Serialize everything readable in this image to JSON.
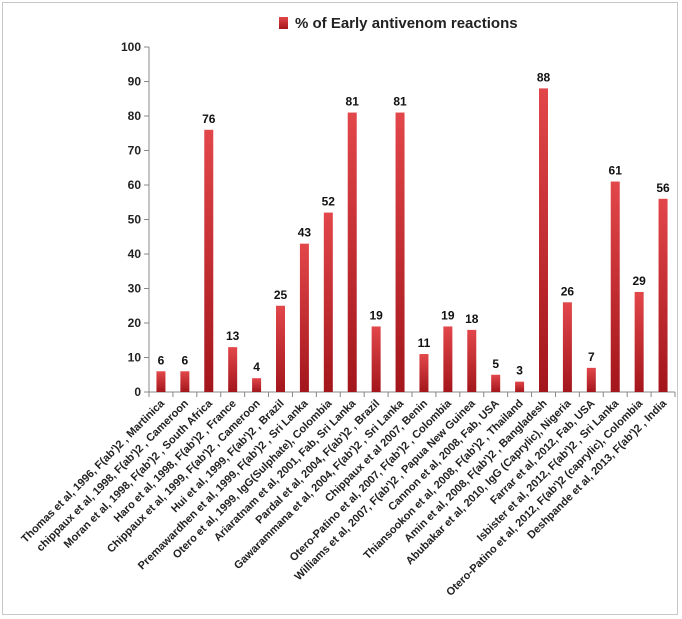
{
  "chart_data": {
    "type": "bar",
    "title": "",
    "xlabel": "",
    "ylabel": "",
    "ylim": [
      0,
      100
    ],
    "yticks": [
      0,
      10,
      20,
      30,
      40,
      50,
      60,
      70,
      80,
      90,
      100
    ],
    "grid": false,
    "legend_position": "top-center",
    "bar_color": "#c0262a",
    "categories": [
      "Thomas et al, 1996, F(ab')2 , Martinica",
      "chippaux et al, 1998, F(ab')2 , Cameroon",
      "Moran et al, 1998, F(ab')2 , South Africa",
      "Haro et al, 1998, F(ab')2 , France",
      "Chippaux et al, 1999, F(ab')2 , Cameroon",
      "Hui et al, 1999, F(ab')2 , Brazil",
      "Premawardhen et al, 1999, F(ab')2 , Sri Lanka",
      "Otero et al, 1999, IgG(Sulphate), Colombia",
      "Ariaratnam et al, 2001, Fab, Sri Lanka",
      "Pardal et al, 2004, F(ab')2 , Brazil",
      "Gawarammana et al, 2004, F(ab')2 , Sri Lanka",
      "Chippaux et al 2007, Benin",
      "Otero-Patino et al, 2007, F(ab')2 , Colombia",
      "Williams et al, 2007, F(ab')2 , Papua New Guinea",
      "Cannon et al, 2008, Fab, USA",
      "Thiansookon et al, 2008, F(ab')2 , Thailand",
      "Amin et al, 2008, F(ab')2 , Bangladesh",
      "Abubakar et al, 2010, IgG (Caprylic), Nigeria",
      "Farrar et al, 2012, Fab, USA",
      "Isbister et al, 2012, F(ab')2 , Sri Lanka",
      "Otero-Patino et al, 2012, F(ab')2 (caprylic), Colombia",
      "Deshpande et al, 2013, F(ab')2 , India"
    ],
    "series": [
      {
        "name": "% of Early antivenom reactions",
        "values": [
          6,
          6,
          76,
          13,
          4,
          25,
          43,
          52,
          81,
          19,
          81,
          11,
          19,
          18,
          5,
          3,
          88,
          26,
          7,
          61,
          29,
          56
        ]
      }
    ]
  }
}
